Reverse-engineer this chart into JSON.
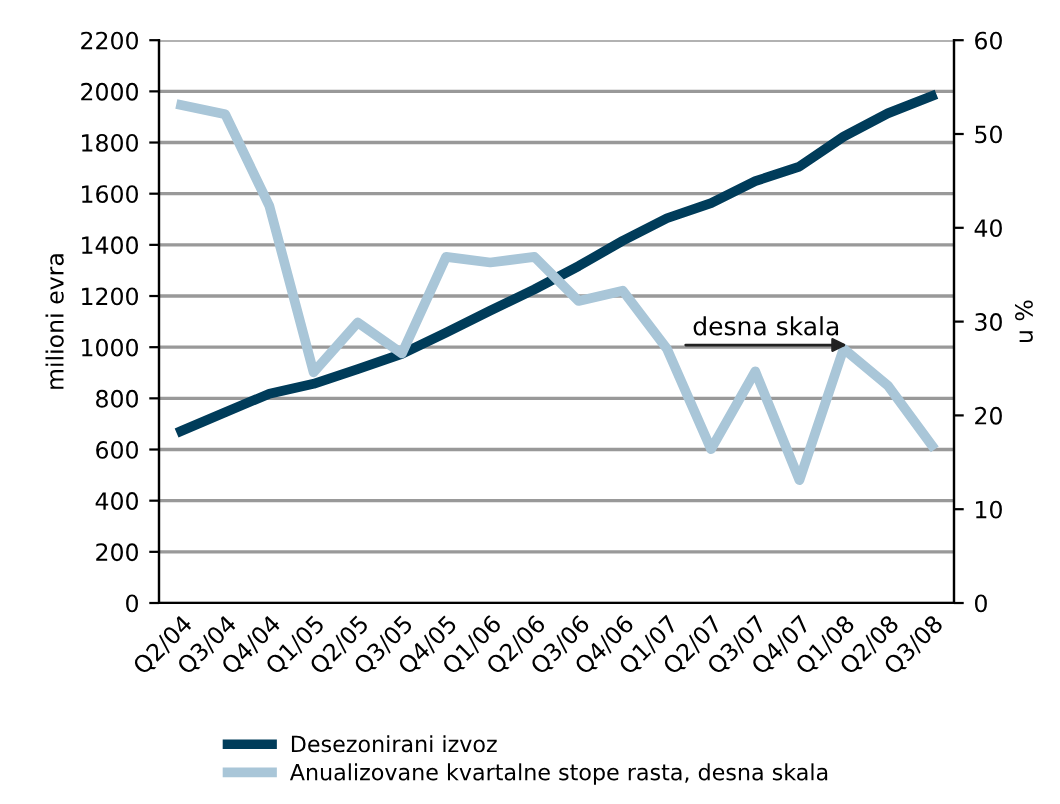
{
  "chart_data": {
    "type": "line",
    "ylabel": "milioni evra",
    "y2label": "u %",
    "categories": [
      "Q2/04",
      "Q3/04",
      "Q4/04",
      "Q1/05",
      "Q2/05",
      "Q3/05",
      "Q4/05",
      "Q1/06",
      "Q2/06",
      "Q3/06",
      "Q4/06",
      "Q1/07",
      "Q2/07",
      "Q3/07",
      "Q4/07",
      "Q1/08",
      "Q2/08",
      "Q3/08"
    ],
    "series": [
      {
        "name": "Desezonirani izvoz",
        "color": "#003c5a",
        "values": [
          672,
          746,
          818,
          857,
          914,
          974,
          1057,
          1143,
          1226,
          1317,
          1416,
          1504,
          1563,
          1649,
          1706,
          1823,
          1914,
          1982
        ]
      },
      {
        "name": "Anualizovane kvartalne stope rasta, desna skala",
        "color": "#a9c6d8",
        "axis": "y2",
        "values": [
          53.1,
          52.1,
          42.3,
          24.6,
          29.9,
          26.6,
          36.9,
          36.3,
          36.9,
          32.2,
          33.3,
          27.1,
          16.4,
          24.7,
          13.1,
          27.1,
          23.2,
          16.8
        ]
      }
    ],
    "ylim": [
      0,
      2200
    ],
    "yticks": [
      0,
      200,
      400,
      600,
      800,
      1000,
      1200,
      1400,
      1600,
      1800,
      2000,
      2200
    ],
    "y2lim": [
      0,
      60
    ],
    "y2ticks": [
      0,
      10,
      20,
      30,
      40,
      50,
      60
    ],
    "annotations": [
      "desna skala"
    ],
    "grid": "y",
    "legend": "bottom",
    "marker": "none",
    "line_style": "solid"
  }
}
